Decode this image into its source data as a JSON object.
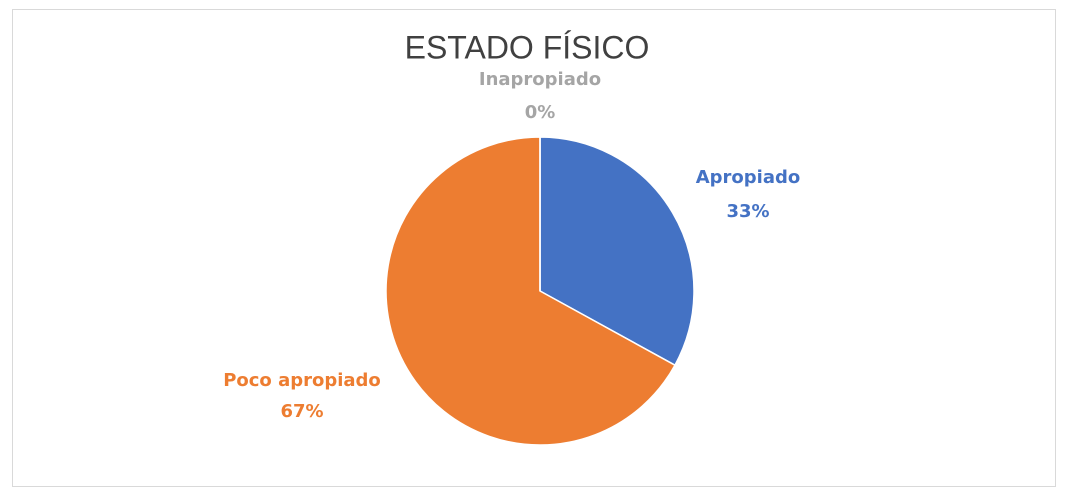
{
  "chart_data": {
    "type": "pie",
    "title": "ESTADO FÍSICO",
    "categories": [
      "Apropiado",
      "Poco apropiado",
      "Inapropiado"
    ],
    "values": [
      33,
      67,
      0
    ],
    "value_labels": [
      "33%",
      "67%",
      "0%"
    ],
    "colors": [
      "#4472c4",
      "#ed7d31",
      "#a5a5a5"
    ]
  }
}
